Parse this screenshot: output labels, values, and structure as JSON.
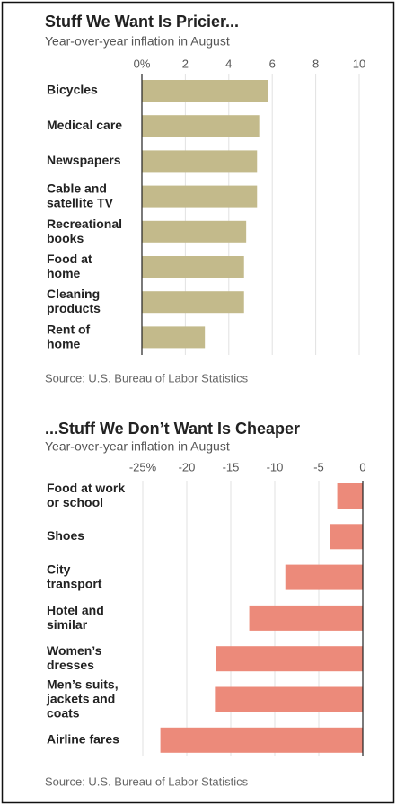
{
  "chart_data": [
    {
      "type": "hbar",
      "title": "Stuff We Want Is Pricier...",
      "subtitle": "Year-over-year inflation in August",
      "categories": [
        "Bicycles",
        "Medical care",
        "Newspapers",
        "Cable and\nsatellite TV",
        "Recreational\nbooks",
        "Food at\nhome",
        "Cleaning\nproducts",
        "Rent of\nhome"
      ],
      "values": [
        5.8,
        5.4,
        5.3,
        5.3,
        4.8,
        4.7,
        4.7,
        2.9
      ],
      "color": "#c3ba8b",
      "xlim": [
        0,
        10
      ],
      "xticks": [
        {
          "value": 0,
          "label": "0%"
        },
        2,
        4,
        6,
        8,
        10
      ],
      "grid": true,
      "source": "Source: U.S. Bureau of Labor Statistics"
    },
    {
      "type": "hbar",
      "title": "...Stuff We Don’t Want Is Cheaper",
      "subtitle": "Year-over-year inflation in August",
      "categories": [
        "Food at work\nor school",
        "Shoes",
        "City\ntransport",
        "Hotel and\nsimilar",
        "Women’s\ndresses",
        "Men’s suits,\njackets and\ncoats",
        "Airline fares"
      ],
      "values": [
        -2.9,
        -3.7,
        -8.8,
        -12.9,
        -16.7,
        -16.8,
        -23.0
      ],
      "color": "#ec8a7a",
      "xlim": [
        -25,
        0
      ],
      "xticks": [
        {
          "value": -25,
          "label": "-25%"
        },
        -20,
        -15,
        -10,
        -5,
        0
      ],
      "grid": true,
      "source": "Source: U.S. Bureau of Labor Statistics"
    }
  ]
}
